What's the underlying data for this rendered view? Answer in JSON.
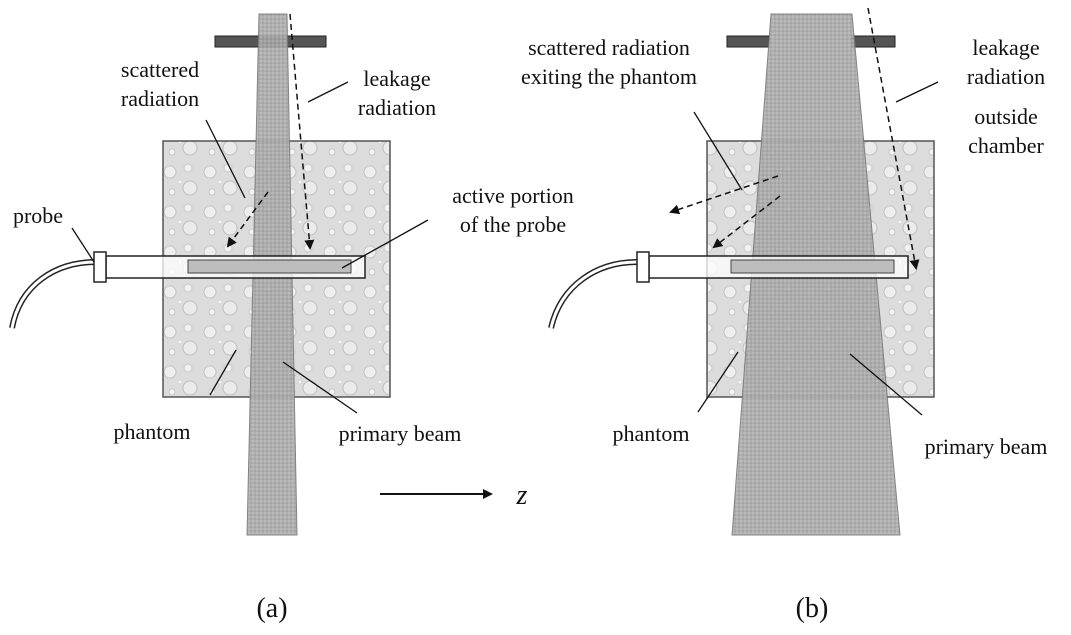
{
  "colors": {
    "beam_fill": "#a9a9a9",
    "phantom_fill": "#d9d9d9",
    "collimator": "#555555",
    "line": "#111111",
    "probe_active": "#bdbdbd"
  },
  "panel_a": {
    "labels": {
      "scattered_line1": "scattered",
      "scattered_line2": "radiation",
      "leakage_line1": "leakage",
      "leakage_line2": "radiation",
      "probe": "probe",
      "active_line1": "active portion",
      "active_line2": "of the probe",
      "phantom": "phantom",
      "primary_beam": "primary beam"
    },
    "caption": "(a)"
  },
  "panel_b": {
    "labels": {
      "scattered_line1": "scattered radiation",
      "scattered_line2": "exiting the phantom",
      "leakage_line1": "leakage",
      "leakage_line2": "radiation",
      "leakage_line3": "outside",
      "leakage_line4": "chamber",
      "phantom": "phantom",
      "primary_beam": "primary beam"
    },
    "caption": "(b)"
  },
  "axis": {
    "label": "z"
  }
}
